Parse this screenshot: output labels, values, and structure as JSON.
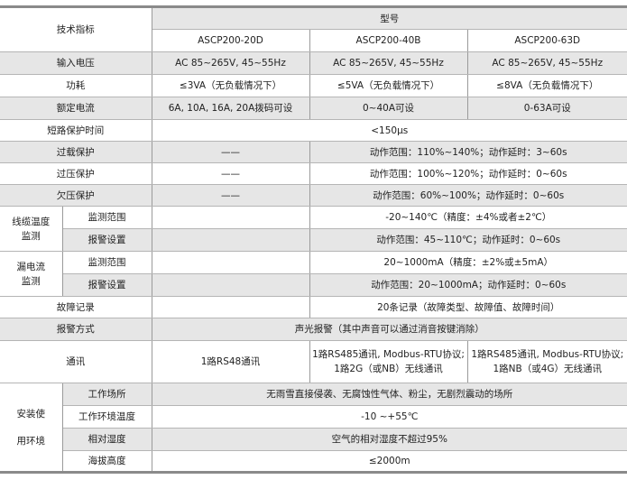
{
  "header": {
    "spec_label": "技术指标",
    "model_label": "型号",
    "models": [
      "ASCP200-20D",
      "ASCP200-40B",
      "ASCP200-63D"
    ]
  },
  "rows": {
    "input_voltage": {
      "label": "输入电压",
      "values": [
        "AC 85~265V, 45~55Hz",
        "AC 85~265V, 45~55Hz",
        "AC 85~265V, 45~55Hz"
      ]
    },
    "power": {
      "label": "功耗",
      "values": [
        "≤3VA（无负载情况下）",
        "≤5VA（无负载情况下）",
        "≤8VA（无负载情况下）"
      ]
    },
    "rated_current": {
      "label": "额定电流",
      "values": [
        "6A, 10A, 16A, 20A拨码可设",
        "0~40A可设",
        "0-63A可设"
      ]
    },
    "short_circuit": {
      "label": "短路保护时间",
      "value": "<150μs"
    },
    "overload": {
      "label": "过载保护",
      "col1": "——",
      "value": "动作范围：110%~140%；动作延时：3~60s"
    },
    "overvoltage": {
      "label": "过压保护",
      "col1": "——",
      "value": "动作范围：100%~120%；动作延时：0~60s"
    },
    "undervoltage": {
      "label": "欠压保护",
      "col1": "——",
      "value": "动作范围：60%~100%；动作延时：0~60s"
    },
    "cable_temp": {
      "label_line1": "线缆温度",
      "label_line2": "监测",
      "range_label": "监测范围",
      "range_value": "-20~140℃（精度：±4%或者±2℃）",
      "alarm_label": "报警设置",
      "alarm_value": "动作范围：45~110℃；动作延时：0~60s"
    },
    "leakage": {
      "label_line1": "漏电流",
      "label_line2": "监测",
      "range_label": "监测范围",
      "range_value": "20~1000mA（精度：±2%或±5mA）",
      "alarm_label": "报警设置",
      "alarm_value": "动作范围：20~1000mA；动作延时：0~60s"
    },
    "fault_record": {
      "label": "故障记录",
      "value": "20条记录（故障类型、故障值、故障时间）"
    },
    "alarm_mode": {
      "label": "报警方式",
      "value": "声光报警（其中声音可以通过消音按键消除）"
    },
    "comm": {
      "label": "通讯",
      "col1": "1路RS48通讯",
      "col2_line1": "1路RS485通讯, Modbus-RTU协议;",
      "col2_line2": "1路2G（或NB）无线通讯",
      "col3_line1": "1路RS485通讯, Modbus-RTU协议;",
      "col3_line2": "1路NB（或4G）无线通讯"
    },
    "environment": {
      "label_line1": "安装使",
      "label_line2": "用环境",
      "items": [
        {
          "label": "工作场所",
          "value": "无雨雪直接侵袭、无腐蚀性气体、粉尘，无剧烈震动的场所"
        },
        {
          "label": "工作环境温度",
          "value": "-10 ~+55℃"
        },
        {
          "label": "相对湿度",
          "value": "空气的相对湿度不超过95%"
        },
        {
          "label": "海拔高度",
          "value": "≤2000m"
        }
      ]
    }
  }
}
